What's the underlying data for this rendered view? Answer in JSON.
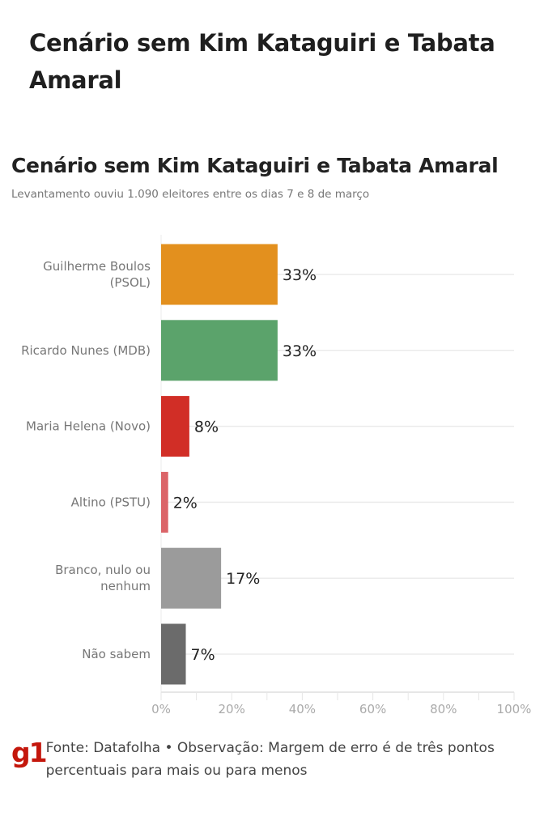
{
  "header": {
    "title": "Cenário sem Kim Kataguiri e Tabata Amaral"
  },
  "chart_data": {
    "type": "bar",
    "orientation": "horizontal",
    "title": "Cenário sem Kim Kataguiri e Tabata Amaral",
    "subtitle": "Levantamento ouviu 1.090 eleitores entre os dias 7 e 8 de março",
    "categories": [
      [
        "Guilherme Boulos",
        "(PSOL)"
      ],
      [
        "Ricardo Nunes (MDB)"
      ],
      [
        "Maria Helena (Novo)"
      ],
      [
        "Altino (PSTU)"
      ],
      [
        "Branco, nulo ou",
        "nenhum"
      ],
      [
        "Não sabem"
      ]
    ],
    "values": [
      33,
      33,
      8,
      2,
      17,
      7
    ],
    "data_labels": [
      "33%",
      "33%",
      "8%",
      "2%",
      "17%",
      "7%"
    ],
    "colors": [
      "#E3901E",
      "#5BA36B",
      "#D12E26",
      "#DB6468",
      "#9B9B9B",
      "#6B6B6B"
    ],
    "xlim": [
      0,
      100
    ],
    "xticks": [
      "0%",
      "20%",
      "40%",
      "60%",
      "80%",
      "100%"
    ],
    "grid": true
  },
  "footer": {
    "logo": "g1",
    "source": "Fonte: Datafolha • Observação: Margem de erro é de três pontos percentuais para mais ou para menos"
  }
}
